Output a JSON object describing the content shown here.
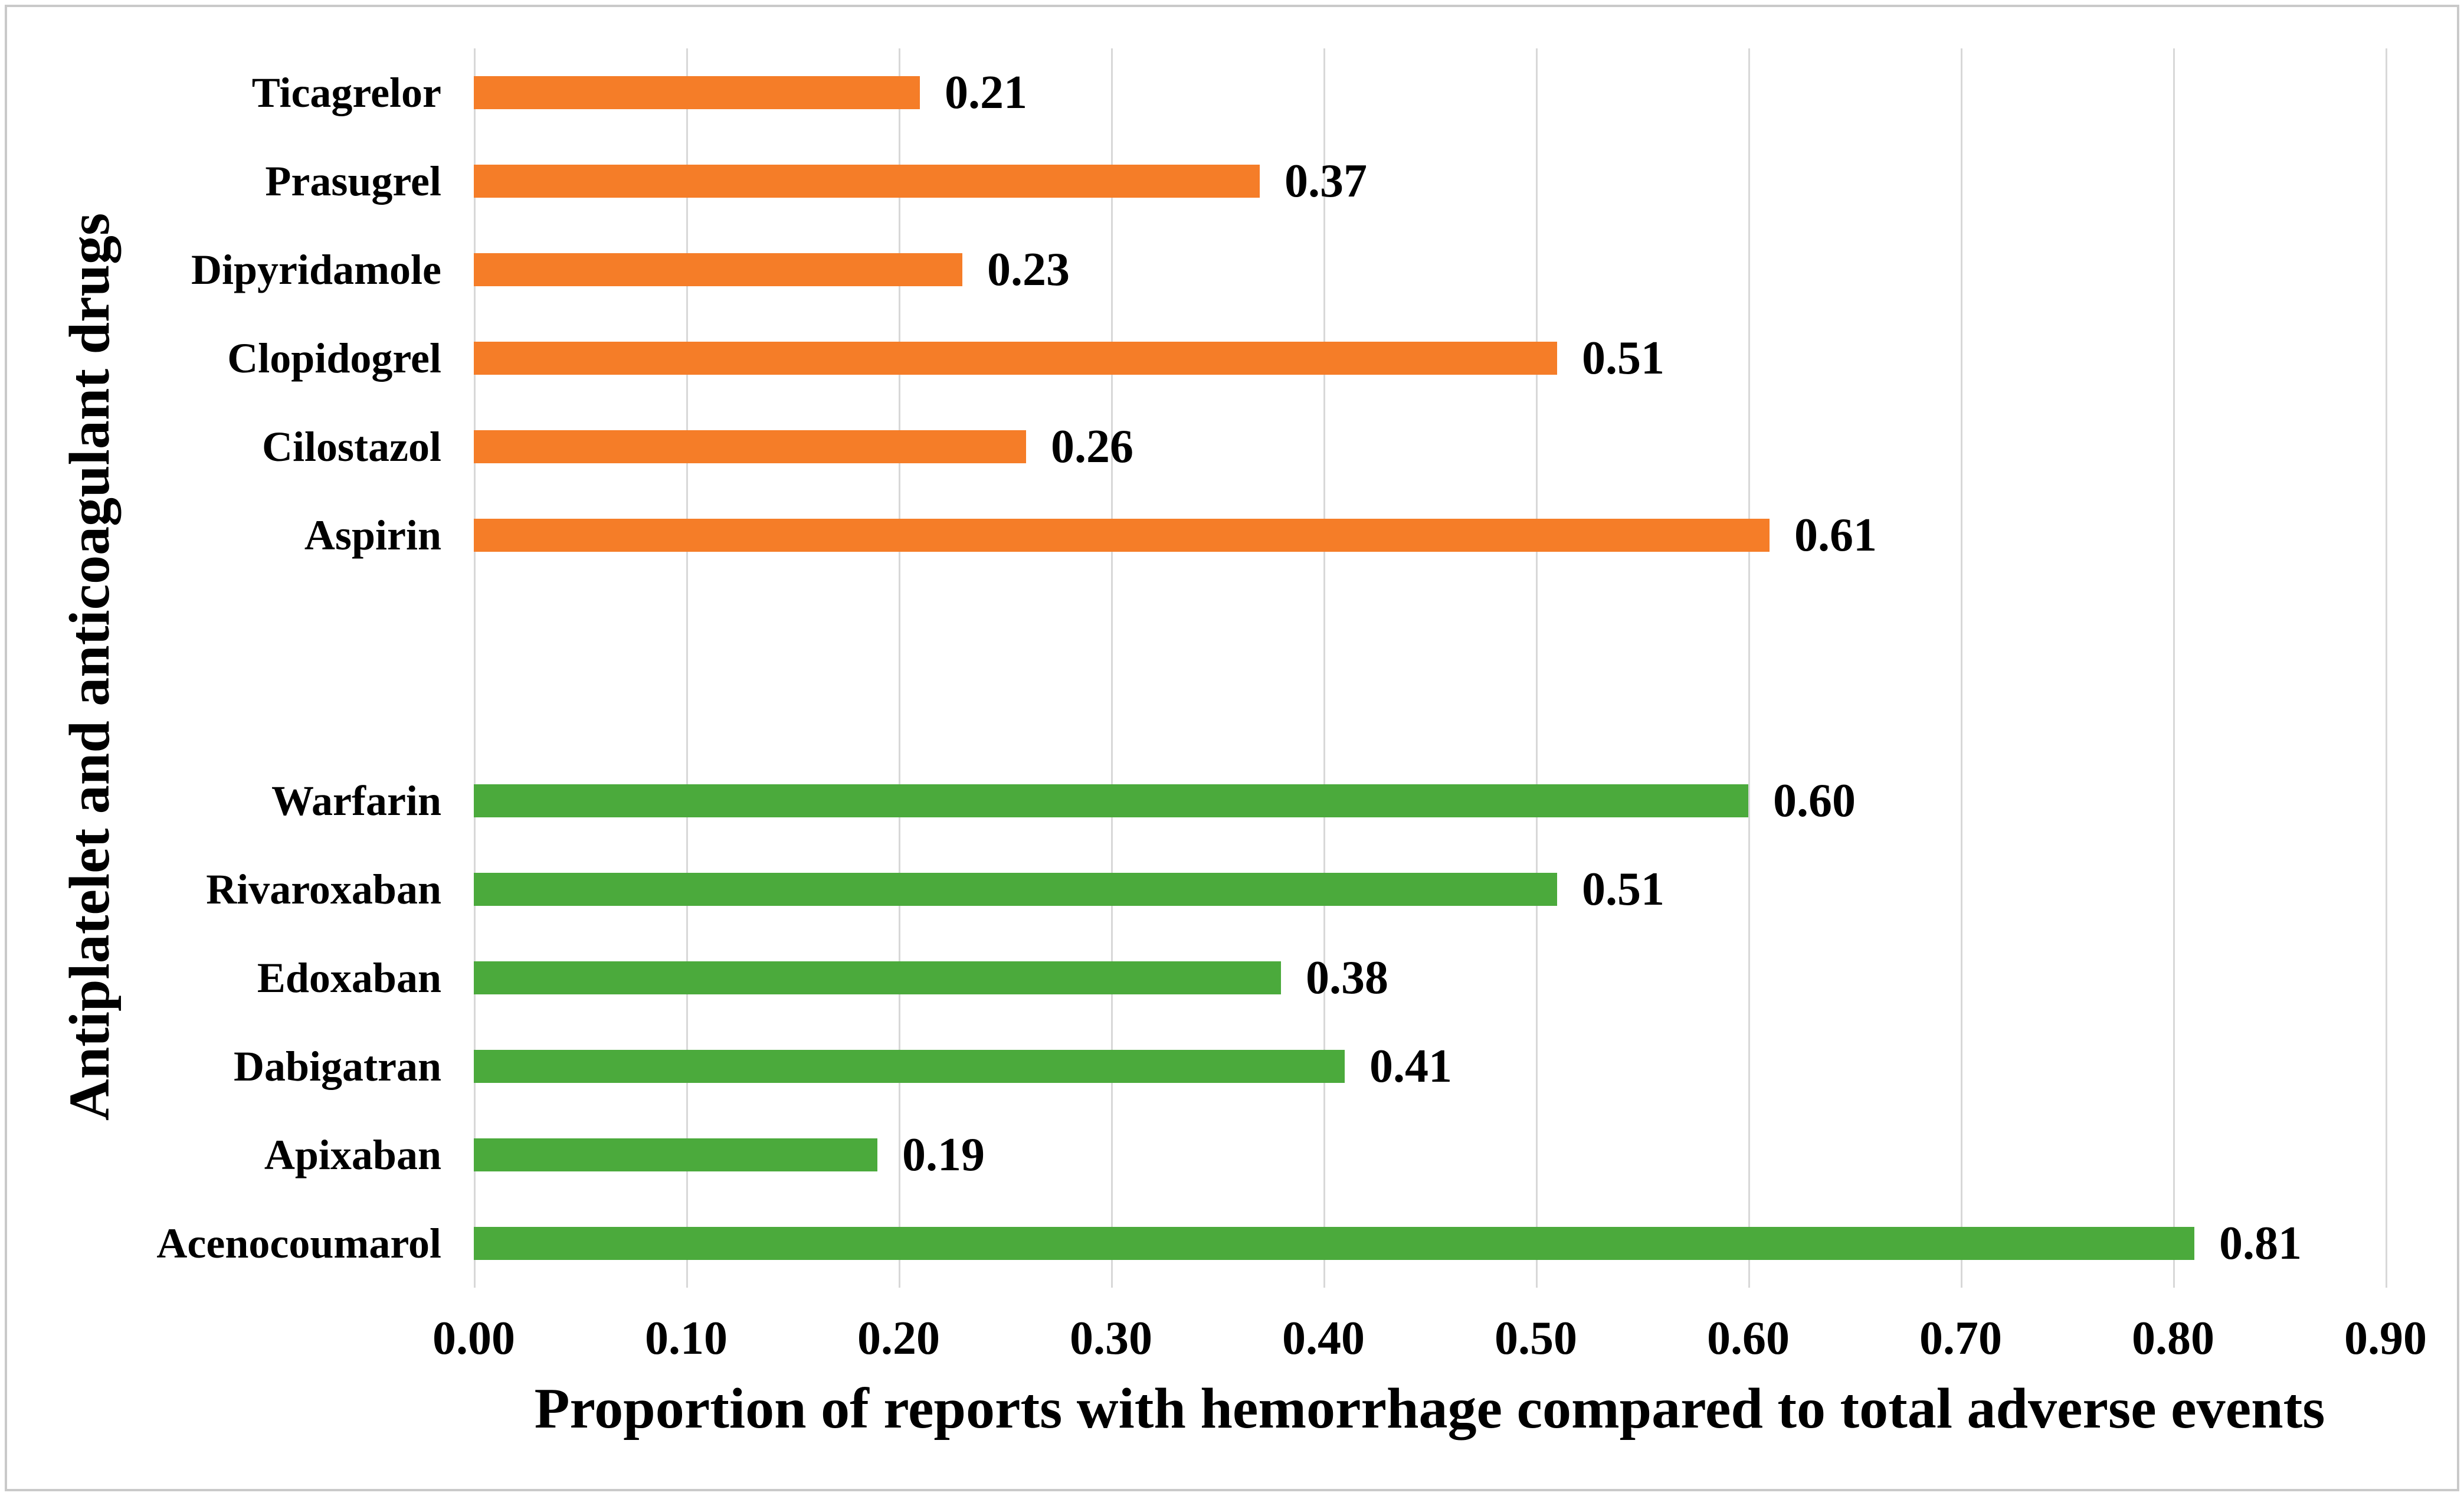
{
  "colors": {
    "background": "#FFFFFF",
    "border": "#C9C9C9",
    "gridline": "#D8D8D8",
    "text": "#000000",
    "orange_bar": "#F57D28",
    "green_bar": "#4BAA3C"
  },
  "chart_data": {
    "type": "bar",
    "orientation": "horizontal",
    "title": "",
    "xlabel": "Proportion of reports with hemorrhage compared to total adverse events",
    "ylabel": "Antiplatelet and anticoagulant drugs",
    "xlim": [
      0.0,
      0.9
    ],
    "x_tick_labels": [
      "0.00",
      "0.10",
      "0.20",
      "0.30",
      "0.40",
      "0.50",
      "0.60",
      "0.70",
      "0.80",
      "0.90"
    ],
    "grid": "vertical-only",
    "legend": "none",
    "gap_rows_between_groups": 2,
    "groups": [
      {
        "id": "antiplatelet-drugs",
        "color": "#F57D28",
        "bars": [
          {
            "label": "Ticagrelor",
            "value": 0.21,
            "value_label": "0.21"
          },
          {
            "label": "Prasugrel",
            "value": 0.37,
            "value_label": "0.37"
          },
          {
            "label": "Dipyridamole",
            "value": 0.23,
            "value_label": "0.23"
          },
          {
            "label": "Clopidogrel",
            "value": 0.51,
            "value_label": "0.51"
          },
          {
            "label": "Cilostazol",
            "value": 0.26,
            "value_label": "0.26"
          },
          {
            "label": "Aspirin",
            "value": 0.61,
            "value_label": "0.61"
          }
        ]
      },
      {
        "id": "anticoagulant-drugs",
        "color": "#4BAA3C",
        "bars": [
          {
            "label": "Warfarin",
            "value": 0.6,
            "value_label": "0.60"
          },
          {
            "label": "Rivaroxaban",
            "value": 0.51,
            "value_label": "0.51"
          },
          {
            "label": "Edoxaban",
            "value": 0.38,
            "value_label": "0.38"
          },
          {
            "label": "Dabigatran",
            "value": 0.41,
            "value_label": "0.41"
          },
          {
            "label": "Apixaban",
            "value": 0.19,
            "value_label": "0.19"
          },
          {
            "label": "Acenocoumarol",
            "value": 0.81,
            "value_label": "0.81"
          }
        ]
      }
    ]
  }
}
